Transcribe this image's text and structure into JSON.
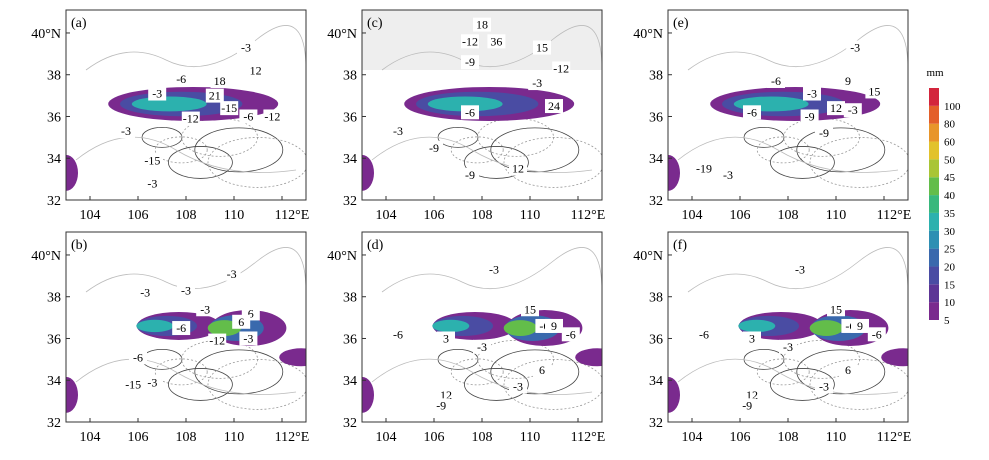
{
  "axes": {
    "xlim": [
      103,
      113
    ],
    "ylim": [
      32,
      41.1
    ],
    "xticks": [
      104,
      106,
      108,
      110,
      {
        "value": 112,
        "label": "112°E"
      }
    ],
    "yticks": [
      32,
      34,
      36,
      38,
      {
        "value": 40,
        "label": "40°N"
      }
    ]
  },
  "panels": [
    {
      "label": "(a)",
      "contour_labels": [
        "-3",
        "-6",
        "18",
        "12",
        "21",
        "-3",
        "-15",
        "-6",
        "-12",
        "-12",
        "-3",
        "-15",
        "-3"
      ]
    },
    {
      "label": "(b)",
      "contour_labels": [
        "-3",
        "-3",
        "-6",
        "6",
        "-3",
        "-12",
        "6",
        "-3",
        "-6",
        "-15",
        "-3",
        "-3"
      ]
    },
    {
      "label": "(c)",
      "contour_labels": [
        "18",
        "-12",
        "36",
        "15",
        "-9",
        "-12",
        "-6",
        "-3",
        "24",
        "-3",
        "-9",
        "12",
        "-9"
      ]
    },
    {
      "label": "(d)",
      "contour_labels": [
        "-3",
        "15",
        "3",
        "-6",
        "9",
        "-3",
        "-6",
        "12",
        "-9",
        "6",
        "-3",
        "-6"
      ]
    },
    {
      "label": "(e)",
      "contour_labels": [
        "-3",
        "-6",
        "9",
        "-3",
        "12",
        "-6",
        "-9",
        "-3",
        "15",
        "-19",
        "-3",
        "-9"
      ]
    },
    {
      "label": "(f)",
      "contour_labels": [
        "-3",
        "15",
        "3",
        "-6",
        "9",
        "-3",
        "-6",
        "12",
        "-9",
        "6",
        "-3",
        "-6"
      ]
    }
  ],
  "colorbar": {
    "unit": "mm",
    "levels": [
      5,
      10,
      15,
      20,
      25,
      30,
      35,
      40,
      45,
      50,
      60,
      80,
      100
    ],
    "colors": [
      "#7a2a8e",
      "#5d3596",
      "#4a4ca3",
      "#3a69ad",
      "#2e8fb3",
      "#2cb1ae",
      "#38b87c",
      "#63bd4a",
      "#a9c535",
      "#e2c22c",
      "#e8952a",
      "#e35f2a",
      "#d3253c"
    ]
  }
}
